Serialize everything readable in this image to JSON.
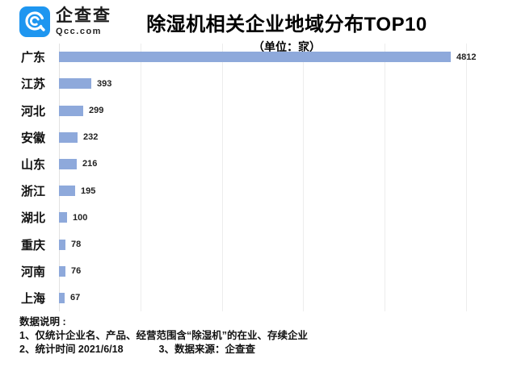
{
  "brand": {
    "name_cn": "企查查",
    "domain": "Qcc.com",
    "logo_color": "#1E96F0"
  },
  "header": {
    "title": "除湿机相关企业地域分布TOP10",
    "subtitle": "（单位：家）"
  },
  "chart_data": {
    "type": "bar",
    "orientation": "horizontal",
    "title": "除湿机相关企业地域分布TOP10",
    "unit_label": "（单位：家）",
    "categories": [
      "广东",
      "江苏",
      "河北",
      "安徽",
      "山东",
      "浙江",
      "湖北",
      "重庆",
      "河南",
      "上海"
    ],
    "values": [
      4812,
      393,
      299,
      232,
      216,
      195,
      100,
      78,
      76,
      67
    ],
    "xlim": [
      0,
      5500
    ],
    "gridline_interval": 1000,
    "grid": true,
    "value_labels_shown": true,
    "bar_color": "#8EA9DB",
    "gridline_color": "#EDEDED"
  },
  "footer": {
    "heading": "数据说明 :",
    "note1": "1、仅统计企业名、产品、经营范围含“除湿机”的在业、存续企业",
    "note2": "2、统计时间 2021/6/18",
    "note3": "3、数据来源：企查查"
  }
}
